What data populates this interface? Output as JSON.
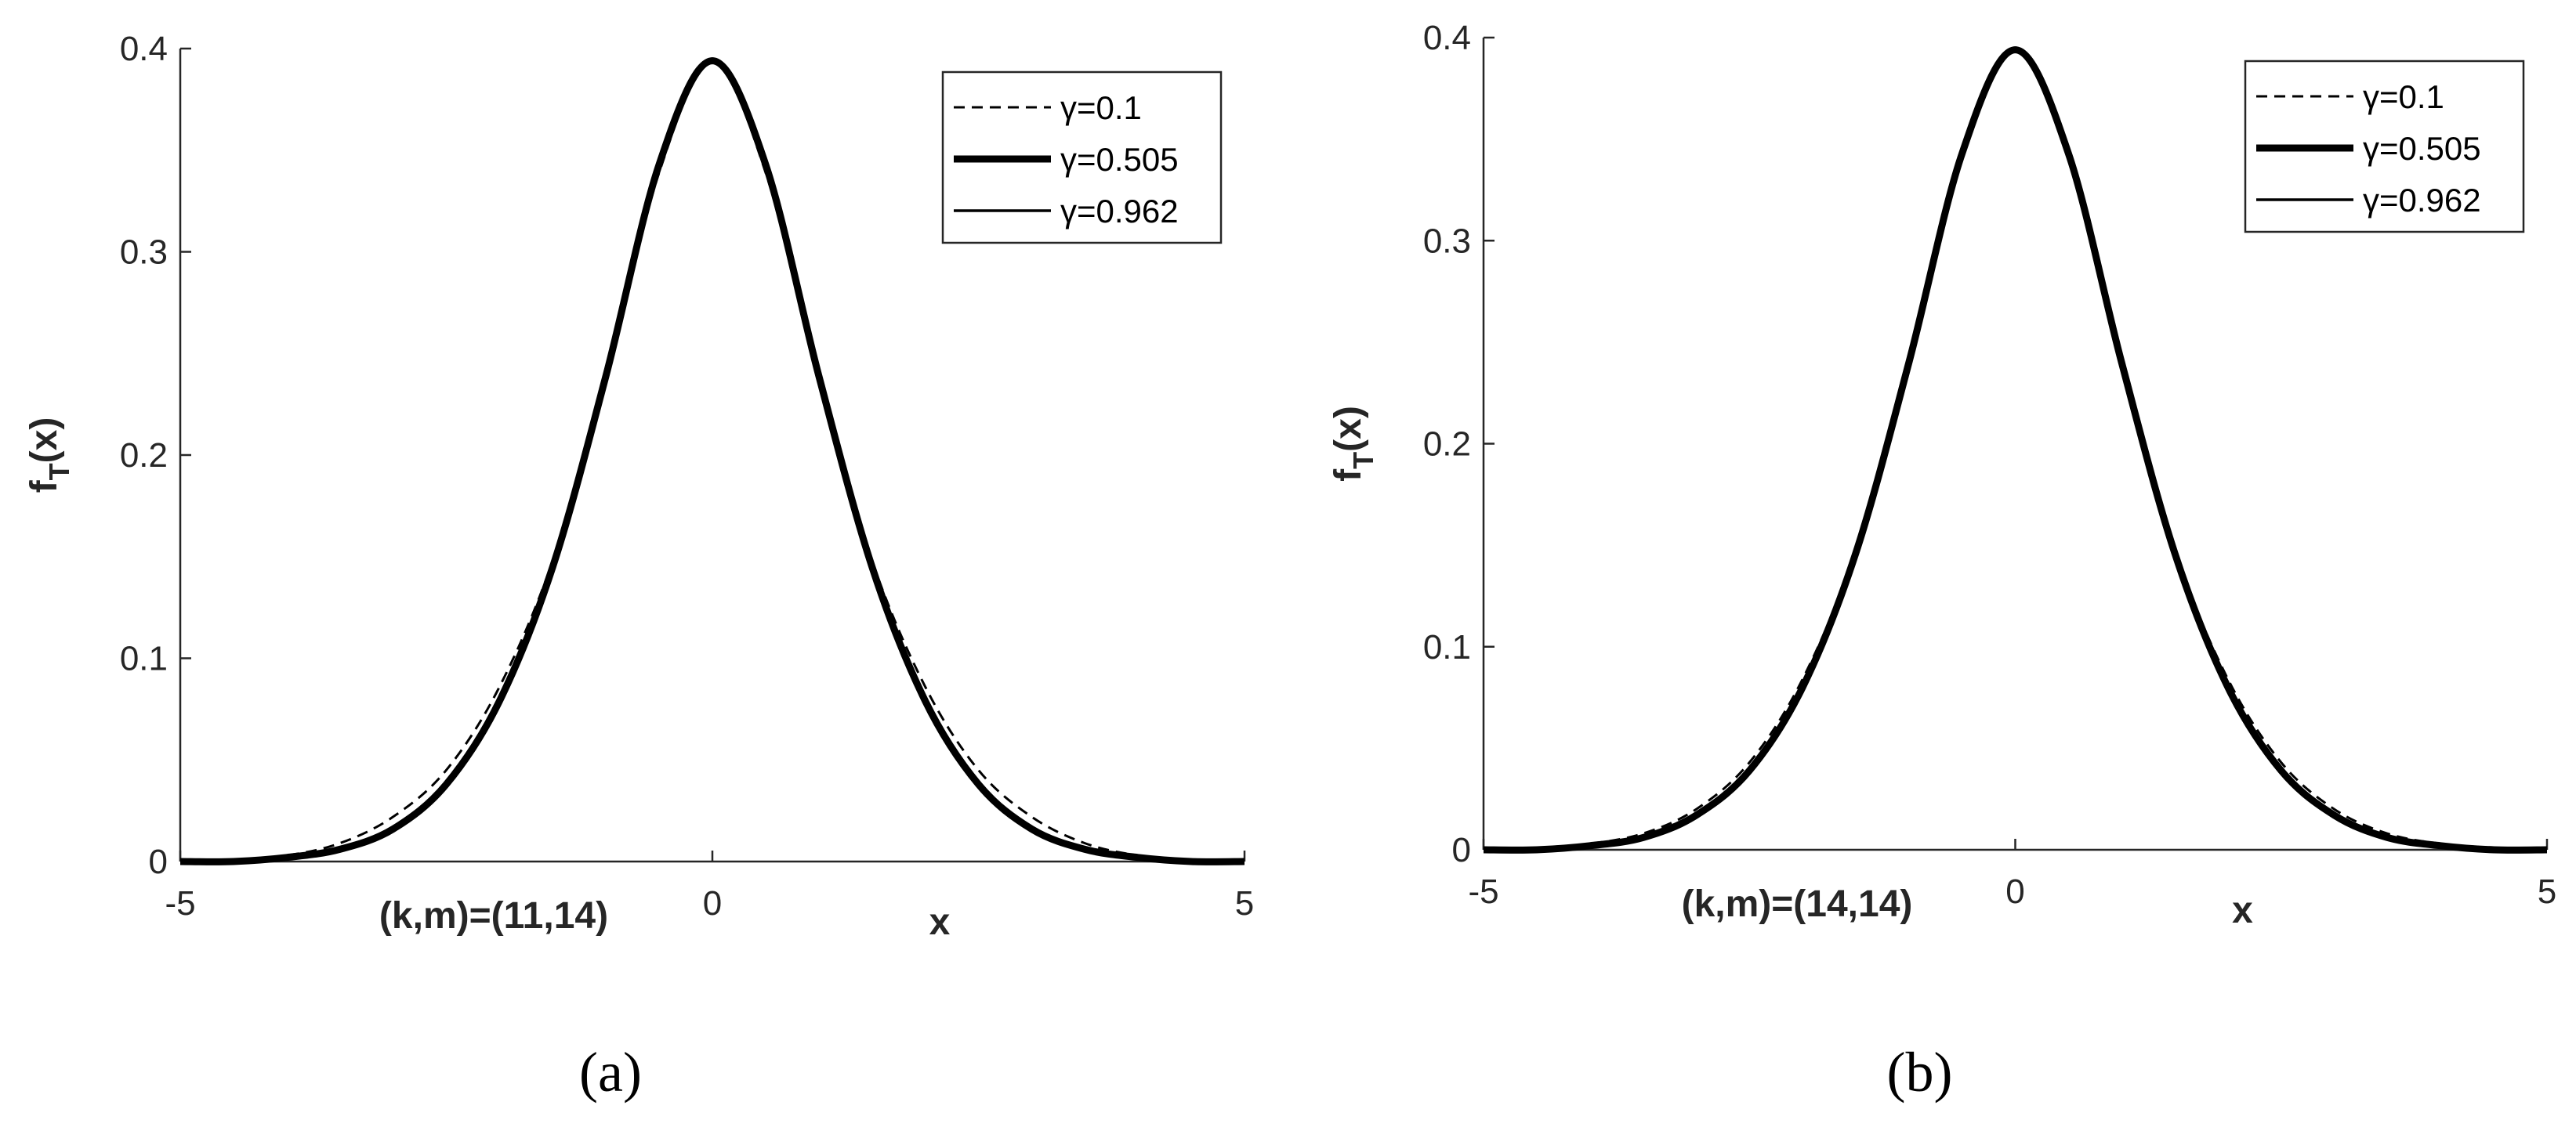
{
  "chart_data": [
    {
      "type": "line",
      "panel_label": "(a)",
      "ylabel": "f",
      "ylabel_sub": "T",
      "ylabel_tail": "(x)",
      "xlabel": "x",
      "note": "(k,m)=(11,14)",
      "xlim": [
        -5,
        5
      ],
      "ylim": [
        0,
        0.4
      ],
      "xticks": [
        -5,
        0,
        5
      ],
      "xtick_labels": [
        "-5",
        "0",
        "5"
      ],
      "yticks": [
        0,
        0.1,
        0.2,
        0.3,
        0.4
      ],
      "ytick_labels": [
        "0",
        "0.1",
        "0.2",
        "0.3",
        "0.4"
      ],
      "grid": false,
      "legend_position": "top-right",
      "series": [
        {
          "name": "γ=0.1",
          "style": "dashed",
          "color": "#000000",
          "x": [
            -5,
            -4.5,
            -4,
            -3.5,
            -3,
            -2.5,
            -2,
            -1.5,
            -1,
            -0.5,
            0,
            0.5,
            1,
            1.5,
            2,
            2.5,
            3,
            3.5,
            4,
            4.5,
            5
          ],
          "y": [
            0,
            0.001,
            0.003,
            0.009,
            0.022,
            0.045,
            0.086,
            0.148,
            0.237,
            0.339,
            0.393,
            0.339,
            0.237,
            0.148,
            0.086,
            0.045,
            0.022,
            0.009,
            0.003,
            0.001,
            0
          ]
        },
        {
          "name": "γ=0.505",
          "style": "thick",
          "color": "#000000",
          "x": [
            -5,
            -4.5,
            -4,
            -3.5,
            -3,
            -2.5,
            -2,
            -1.5,
            -1,
            -0.5,
            0,
            0.5,
            1,
            1.5,
            2,
            2.5,
            3,
            3.5,
            4,
            4.5,
            5
          ],
          "y": [
            0,
            0,
            0.002,
            0.006,
            0.016,
            0.038,
            0.079,
            0.145,
            0.239,
            0.343,
            0.394,
            0.343,
            0.239,
            0.145,
            0.079,
            0.038,
            0.016,
            0.006,
            0.002,
            0,
            0
          ]
        },
        {
          "name": "γ=0.962",
          "style": "solid",
          "color": "#000000",
          "x": [
            -5,
            -4.5,
            -4,
            -3.5,
            -3,
            -2.5,
            -2,
            -1.5,
            -1,
            -0.5,
            0,
            0.5,
            1,
            1.5,
            2,
            2.5,
            3,
            3.5,
            4,
            4.5,
            5
          ],
          "y": [
            0,
            0,
            0.002,
            0.006,
            0.017,
            0.039,
            0.08,
            0.146,
            0.24,
            0.344,
            0.395,
            0.344,
            0.24,
            0.146,
            0.08,
            0.039,
            0.017,
            0.006,
            0.002,
            0,
            0
          ]
        }
      ]
    },
    {
      "type": "line",
      "panel_label": "(b)",
      "ylabel": "f",
      "ylabel_sub": "T",
      "ylabel_tail": "(x)",
      "xlabel": "x",
      "note": "(k,m)=(14,14)",
      "xlim": [
        -5,
        5
      ],
      "ylim": [
        0,
        0.4
      ],
      "xticks": [
        -5,
        0,
        5
      ],
      "xtick_labels": [
        "-5",
        "0",
        "5"
      ],
      "yticks": [
        0,
        0.1,
        0.2,
        0.3,
        0.4
      ],
      "ytick_labels": [
        "0",
        "0.1",
        "0.2",
        "0.3",
        "0.4"
      ],
      "grid": false,
      "legend_position": "top-right",
      "series": [
        {
          "name": "γ=0.1",
          "style": "dashed",
          "color": "#000000",
          "x": [
            -5,
            -4.5,
            -4,
            -3.5,
            -3,
            -2.5,
            -2,
            -1.5,
            -1,
            -0.5,
            0,
            0.5,
            1,
            1.5,
            2,
            2.5,
            3,
            3.5,
            4,
            4.5,
            5
          ],
          "y": [
            0,
            0.001,
            0.003,
            0.008,
            0.02,
            0.043,
            0.084,
            0.147,
            0.238,
            0.34,
            0.393,
            0.34,
            0.238,
            0.147,
            0.084,
            0.043,
            0.02,
            0.008,
            0.003,
            0.001,
            0
          ]
        },
        {
          "name": "γ=0.505",
          "style": "thick",
          "color": "#000000",
          "x": [
            -5,
            -4.5,
            -4,
            -3.5,
            -3,
            -2.5,
            -2,
            -1.5,
            -1,
            -0.5,
            0,
            0.5,
            1,
            1.5,
            2,
            2.5,
            3,
            3.5,
            4,
            4.5,
            5
          ],
          "y": [
            0,
            0,
            0.002,
            0.006,
            0.017,
            0.039,
            0.08,
            0.146,
            0.24,
            0.343,
            0.394,
            0.343,
            0.24,
            0.146,
            0.08,
            0.039,
            0.017,
            0.006,
            0.002,
            0,
            0
          ]
        },
        {
          "name": "γ=0.962",
          "style": "solid",
          "color": "#000000",
          "x": [
            -5,
            -4.5,
            -4,
            -3.5,
            -3,
            -2.5,
            -2,
            -1.5,
            -1,
            -0.5,
            0,
            0.5,
            1,
            1.5,
            2,
            2.5,
            3,
            3.5,
            4,
            4.5,
            5
          ],
          "y": [
            0,
            0,
            0.002,
            0.006,
            0.017,
            0.04,
            0.081,
            0.146,
            0.241,
            0.344,
            0.395,
            0.344,
            0.241,
            0.146,
            0.081,
            0.04,
            0.017,
            0.006,
            0.002,
            0,
            0
          ]
        }
      ]
    }
  ]
}
